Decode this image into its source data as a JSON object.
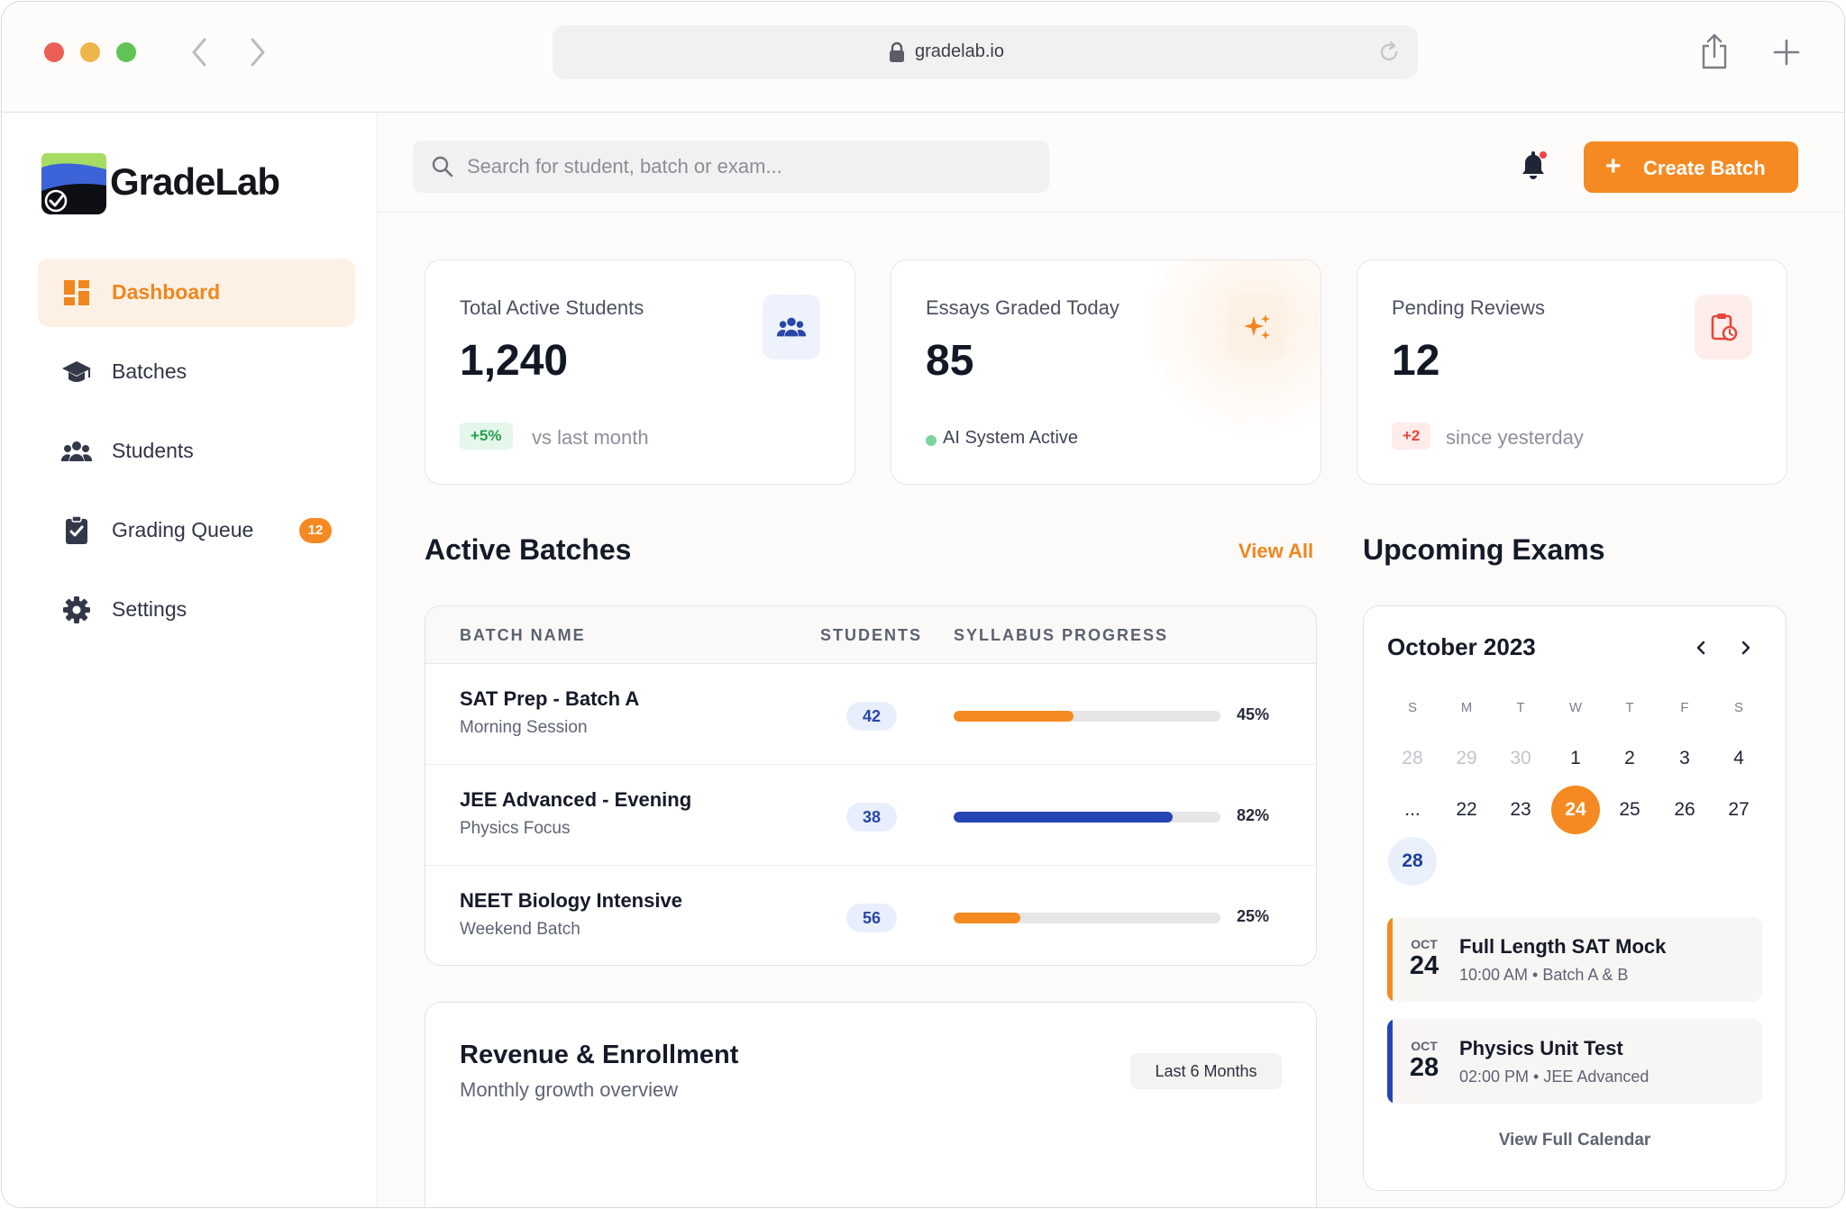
{
  "browser": {
    "url": "gradelab.io"
  },
  "brand": {
    "name": "GradeLab"
  },
  "sidebar": {
    "items": [
      {
        "label": "Dashboard",
        "icon": "dashboard-icon",
        "active": true
      },
      {
        "label": "Batches",
        "icon": "graduation-cap-icon"
      },
      {
        "label": "Students",
        "icon": "users-icon"
      },
      {
        "label": "Grading Queue",
        "icon": "clipboard-check-icon",
        "badge": "12"
      },
      {
        "label": "Settings",
        "icon": "gear-icon"
      }
    ]
  },
  "topbar": {
    "search_placeholder": "Search for student, batch or exam...",
    "create_label": "Create Batch"
  },
  "stats": [
    {
      "label": "Total Active Students",
      "value": "1,240",
      "delta": "+5%",
      "note": "vs last month",
      "icon": "users-icon"
    },
    {
      "label": "Essays Graded Today",
      "value": "85",
      "status": "AI System Active",
      "icon": "sparkles-icon"
    },
    {
      "label": "Pending Reviews",
      "value": "12",
      "delta": "+2",
      "note": "since yesterday",
      "icon": "clipboard-clock-icon"
    }
  ],
  "batches": {
    "title": "Active Batches",
    "view_all": "View All",
    "columns": [
      "BATCH NAME",
      "STUDENTS",
      "SYLLABUS PROGRESS"
    ],
    "rows": [
      {
        "name": "SAT Prep - Batch A",
        "sub": "Morning Session",
        "students": "42",
        "progress": 45,
        "progress_label": "45%",
        "color": "#f58a22"
      },
      {
        "name": "JEE Advanced - Evening",
        "sub": "Physics Focus",
        "students": "38",
        "progress": 82,
        "progress_label": "82%",
        "color": "#2545b5"
      },
      {
        "name": "NEET Biology Intensive",
        "sub": "Weekend Batch",
        "students": "56",
        "progress": 25,
        "progress_label": "25%",
        "color": "#f58a22"
      }
    ]
  },
  "revenue": {
    "title": "Revenue & Enrollment",
    "subtitle": "Monthly growth overview",
    "range": "Last 6 Months"
  },
  "exams": {
    "title": "Upcoming Exams",
    "month": "October 2023",
    "weekdays": [
      "S",
      "M",
      "T",
      "W",
      "T",
      "F",
      "S"
    ],
    "week1": [
      "28",
      "29",
      "30",
      "1",
      "2",
      "3",
      "4"
    ],
    "week2": [
      "...",
      "22",
      "23",
      "24",
      "25",
      "26",
      "27"
    ],
    "week3": [
      "28"
    ],
    "today": "24",
    "items": [
      {
        "month": "OCT",
        "day": "24",
        "title": "Full Length SAT Mock",
        "meta": "10:00 AM • Batch A & B",
        "color": "#f58a22"
      },
      {
        "month": "OCT",
        "day": "28",
        "title": "Physics Unit Test",
        "meta": "02:00 PM • JEE Advanced",
        "color": "#2545b5"
      }
    ],
    "full_calendar": "View Full Calendar"
  }
}
